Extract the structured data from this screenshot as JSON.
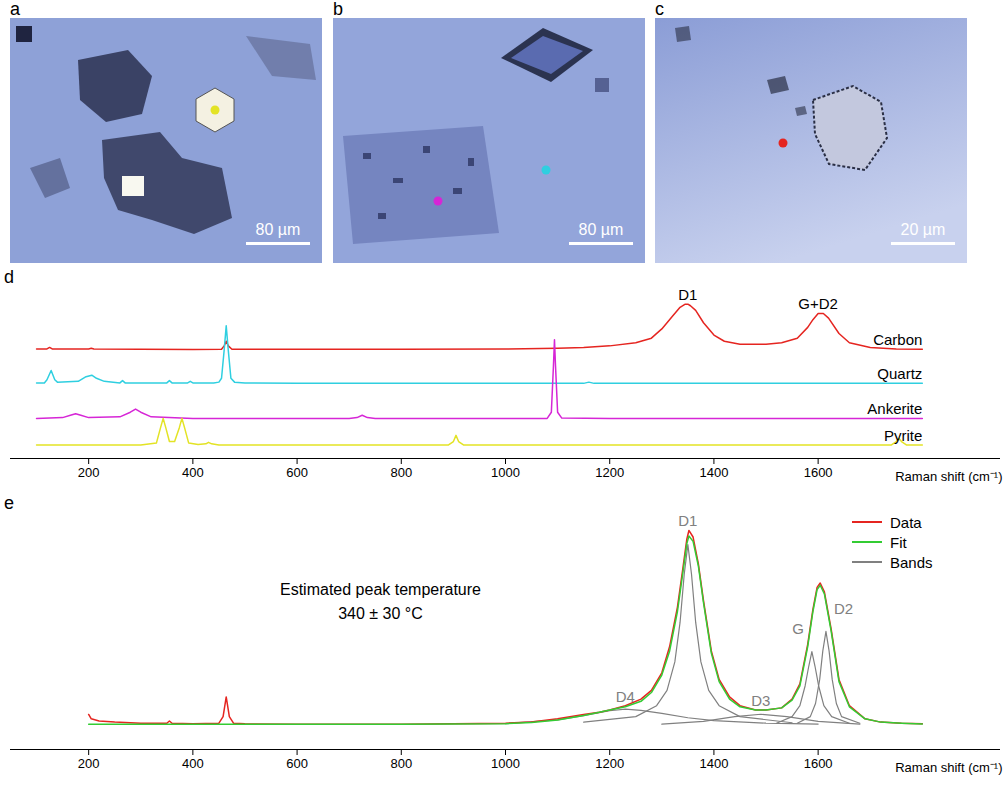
{
  "images": [
    {
      "label": "a",
      "scale_bar": "80 µm",
      "spots": [
        "Pyrite"
      ]
    },
    {
      "label": "b",
      "scale_bar": "80 µm",
      "spots": [
        "Ankerite",
        "Quartz"
      ]
    },
    {
      "label": "c",
      "scale_bar": "20 µm",
      "spots": [
        "Carbon"
      ]
    }
  ],
  "chart_data": [
    {
      "label": "d",
      "type": "line",
      "x_label": "Raman shift (cm⁻¹)",
      "xlim": [
        50,
        1950
      ],
      "xticks": [
        200,
        400,
        600,
        800,
        1000,
        1200,
        1400,
        1600
      ],
      "ylim": [
        0,
        105
      ],
      "tick_labels": "x",
      "annotations": [
        {
          "text": "D1",
          "x": 1350,
          "series": "Carbon"
        },
        {
          "text": "G+D2",
          "x": 1600,
          "series": "Carbon"
        }
      ],
      "series": [
        {
          "name": "Carbon",
          "color": "#e52520",
          "x": [
            100,
            120,
            125,
            130,
            200,
            205,
            210,
            300,
            400,
            455,
            460,
            464,
            468,
            475,
            600,
            800,
            1000,
            1100,
            1150,
            1200,
            1250,
            1280,
            1300,
            1320,
            1335,
            1345,
            1350,
            1355,
            1365,
            1380,
            1400,
            1420,
            1450,
            1480,
            1500,
            1530,
            1560,
            1580,
            1590,
            1600,
            1610,
            1620,
            1640,
            1660,
            1700,
            1750,
            1800
          ],
          "values": [
            71,
            71,
            72,
            71,
            71,
            71.5,
            71,
            70.8,
            70.7,
            70.8,
            73,
            76,
            73,
            70.8,
            70.8,
            70.8,
            71,
            71.5,
            72,
            73,
            75,
            78,
            84,
            92,
            98,
            100,
            100,
            99,
            96,
            88,
            80,
            76,
            74,
            74,
            74,
            75,
            78,
            85,
            90,
            94,
            94,
            91,
            81,
            75,
            72,
            71,
            70.8
          ]
        },
        {
          "name": "Quartz",
          "color": "#2fcfe0",
          "x": [
            100,
            115,
            120,
            128,
            135,
            140,
            180,
            195,
            206,
            215,
            230,
            260,
            265,
            270,
            300,
            350,
            355,
            360,
            390,
            395,
            400,
            440,
            450,
            455,
            460,
            464,
            468,
            473,
            480,
            500,
            600,
            800,
            1000,
            1150,
            1160,
            1170,
            1400,
            1600,
            1800
          ],
          "values": [
            49,
            49,
            51,
            57,
            51,
            49.5,
            50,
            53,
            54,
            52,
            50,
            49,
            50.5,
            49,
            49,
            49,
            50.5,
            49,
            49,
            50,
            49,
            49,
            49.5,
            52,
            70,
            86,
            70,
            52,
            49.5,
            49,
            48.7,
            48.7,
            48.7,
            48.7,
            49.5,
            48.7,
            48.7,
            48.7,
            48.7
          ]
        },
        {
          "name": "Ankerite",
          "color": "#d626d6",
          "x": [
            100,
            150,
            165,
            175,
            185,
            200,
            260,
            280,
            290,
            300,
            320,
            400,
            700,
            715,
            725,
            735,
            750,
            1000,
            1080,
            1088,
            1092,
            1094,
            1096,
            1100,
            1108,
            1200,
            1400,
            1600,
            1800
          ],
          "values": [
            26,
            26.5,
            28,
            29,
            28,
            26.5,
            27,
            30,
            32,
            30,
            27,
            26,
            26,
            26.5,
            28,
            26.5,
            26,
            26,
            26,
            30,
            60,
            77,
            60,
            30,
            26.2,
            26,
            26,
            26,
            26
          ]
        },
        {
          "name": "Pyrite",
          "color": "#e3e325",
          "x": [
            100,
            300,
            330,
            338,
            343,
            348,
            355,
            365,
            374,
            379,
            384,
            392,
            410,
            425,
            430,
            436,
            450,
            600,
            890,
            900,
            905,
            910,
            920,
            1200,
            1400,
            1740,
            1750,
            1755,
            1760,
            1770,
            1800
          ],
          "values": [
            8.7,
            8.7,
            10,
            20,
            26,
            20,
            11,
            11,
            20,
            26,
            20,
            10,
            9,
            9.5,
            10.5,
            9.5,
            8.7,
            8.7,
            8.7,
            11,
            15,
            11,
            8.7,
            8.7,
            8.7,
            8.7,
            11,
            13,
            11,
            8.7,
            8.7
          ]
        }
      ]
    },
    {
      "label": "e",
      "type": "line",
      "x_label": "Raman shift (cm⁻¹)",
      "xlim": [
        50,
        1950
      ],
      "xticks": [
        200,
        400,
        600,
        800,
        1000,
        1200,
        1400,
        1600
      ],
      "ylim": [
        0,
        105
      ],
      "tick_labels": "x",
      "legend": "top-right",
      "annotation": [
        "Estimated peak temperature",
        "340 ± 30 °C"
      ],
      "series": [
        {
          "name": "Data",
          "color": "#e52520",
          "x": [
            200,
            205,
            220,
            250,
            300,
            350,
            355,
            360,
            400,
            450,
            458,
            464,
            470,
            478,
            500,
            600,
            800,
            1000,
            1050,
            1100,
            1150,
            1180,
            1200,
            1230,
            1260,
            1280,
            1300,
            1315,
            1330,
            1340,
            1348,
            1352,
            1360,
            1370,
            1380,
            1395,
            1410,
            1430,
            1450,
            1480,
            1500,
            1530,
            1550,
            1565,
            1580,
            1590,
            1598,
            1604,
            1612,
            1625,
            1640,
            1660,
            1690,
            1720,
            1760,
            1800
          ],
          "values": [
            16,
            14,
            13,
            12.5,
            12,
            12,
            13,
            12,
            11.8,
            12,
            15,
            24,
            15,
            12,
            11.7,
            11.5,
            11.5,
            12,
            12.5,
            14,
            16,
            17,
            18,
            20,
            23,
            27,
            35,
            47,
            65,
            82,
            96,
            100,
            97,
            85,
            68,
            45,
            32,
            24,
            20,
            18,
            18,
            19,
            23,
            30,
            48,
            64,
            74,
            76,
            72,
            55,
            32,
            20,
            14,
            12.5,
            12,
            11.8
          ]
        },
        {
          "name": "Fit",
          "color": "#33cc33",
          "x": [
            200,
            400,
            600,
            800,
            1000,
            1050,
            1100,
            1150,
            1180,
            1200,
            1230,
            1260,
            1280,
            1300,
            1315,
            1330,
            1340,
            1348,
            1352,
            1360,
            1370,
            1380,
            1395,
            1410,
            1430,
            1450,
            1480,
            1500,
            1530,
            1550,
            1565,
            1580,
            1590,
            1598,
            1604,
            1612,
            1625,
            1640,
            1660,
            1690,
            1720,
            1760,
            1800
          ],
          "values": [
            11.5,
            11.5,
            11.5,
            11.5,
            11.8,
            12.3,
            13.5,
            15.5,
            17,
            18,
            19.5,
            22,
            26,
            34,
            45,
            63,
            80,
            94,
            97.5,
            95,
            84,
            67,
            44,
            31,
            23,
            19.5,
            18,
            18,
            19,
            22.5,
            29,
            47,
            63,
            73,
            75,
            71,
            54,
            31,
            19.5,
            14,
            12.5,
            12,
            11.6
          ]
        },
        {
          "name": "Bands",
          "color": "#808080",
          "bands": [
            {
              "name": "D4",
              "x": [
                1000,
                1100,
                1150,
                1200,
                1230,
                1260,
                1300,
                1350,
                1400,
                1500,
                1600
              ],
              "values": [
                11.8,
                13.5,
                15.5,
                17.7,
                18.4,
                17.9,
                16.5,
                14.5,
                13.2,
                12,
                11.6
              ]
            },
            {
              "name": "D1",
              "x": [
                1150,
                1250,
                1290,
                1310,
                1325,
                1335,
                1343,
                1350,
                1357,
                1365,
                1375,
                1390,
                1410,
                1450,
                1550
              ],
              "values": [
                12.5,
                15,
                20,
                27,
                40,
                58,
                80,
                93.5,
                80,
                58,
                40,
                27,
                20,
                15,
                12.2
              ]
            },
            {
              "name": "D3",
              "x": [
                1300,
                1380,
                1440,
                1490,
                1540,
                1600,
                1680
              ],
              "values": [
                11.6,
                12.8,
                15,
                16.1,
                15,
                12.8,
                11.6
              ]
            },
            {
              "name": "G",
              "x": [
                1520,
                1550,
                1565,
                1575,
                1582,
                1588,
                1594,
                1601,
                1611,
                1626,
                1660
              ],
              "values": [
                12,
                15,
                20,
                29,
                38,
                44.7,
                38,
                29,
                20,
                15,
                12
              ]
            },
            {
              "name": "D2",
              "x": [
                1560,
                1585,
                1595,
                1603,
                1609,
                1615,
                1621,
                1627,
                1635,
                1645,
                1680
              ],
              "values": [
                12,
                15,
                21,
                32,
                45,
                53.9,
                45,
                32,
                21,
                15,
                12
              ]
            }
          ]
        }
      ]
    }
  ]
}
